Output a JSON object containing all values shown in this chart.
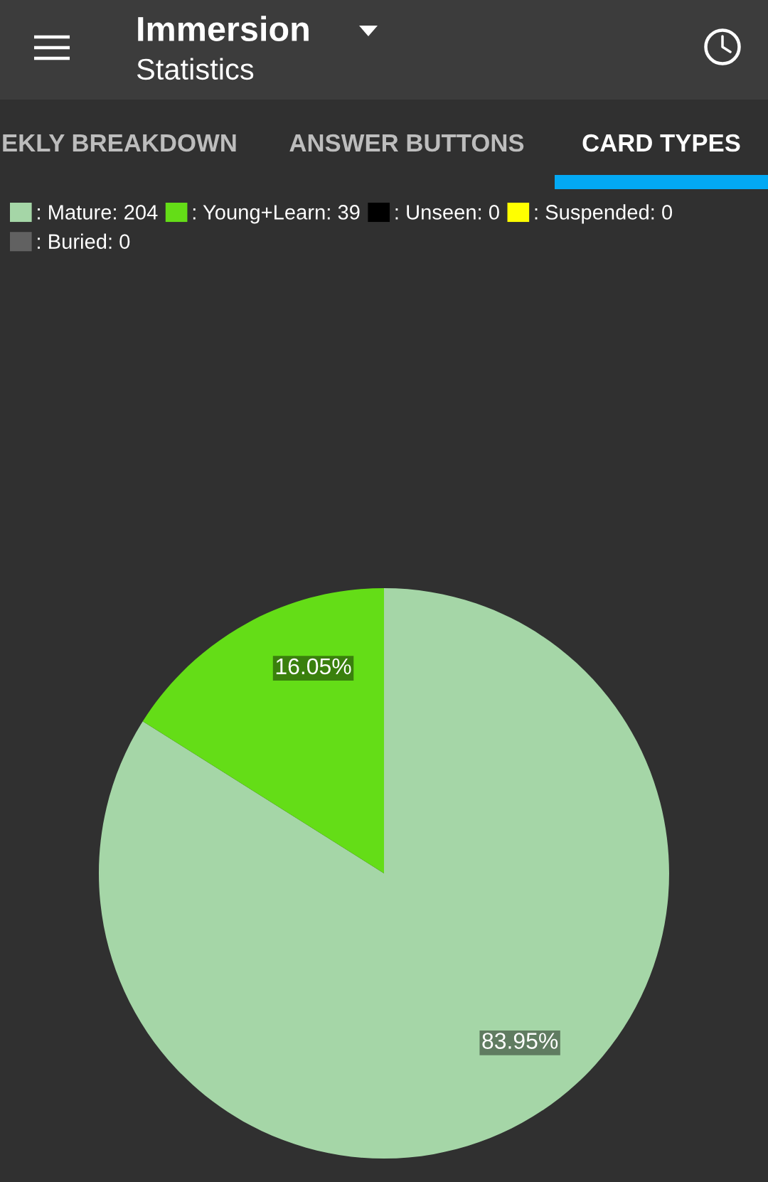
{
  "chart_data": {
    "type": "pie",
    "title": "Immersion",
    "subtitle": "Statistics",
    "annotations": [
      "EKLY BREAKDOWN",
      "ANSWER BUTTONS",
      "CARD TYPES"
    ],
    "categories": [
      ": Mature: 204",
      ": Young+Learn: 39",
      ": Unseen: 0",
      ": Suspended: 0",
      ": Buried: 0"
    ],
    "values": [
      83.95,
      16.05,
      0,
      0,
      0
    ],
    "colors": [
      "#a5d6a7",
      "#64dd17",
      "#000000",
      "#ffff00",
      "#616161"
    ],
    "value_labels": [
      "83.95%",
      "16.05%",
      null,
      null,
      null
    ],
    "legend": "top left"
  }
}
